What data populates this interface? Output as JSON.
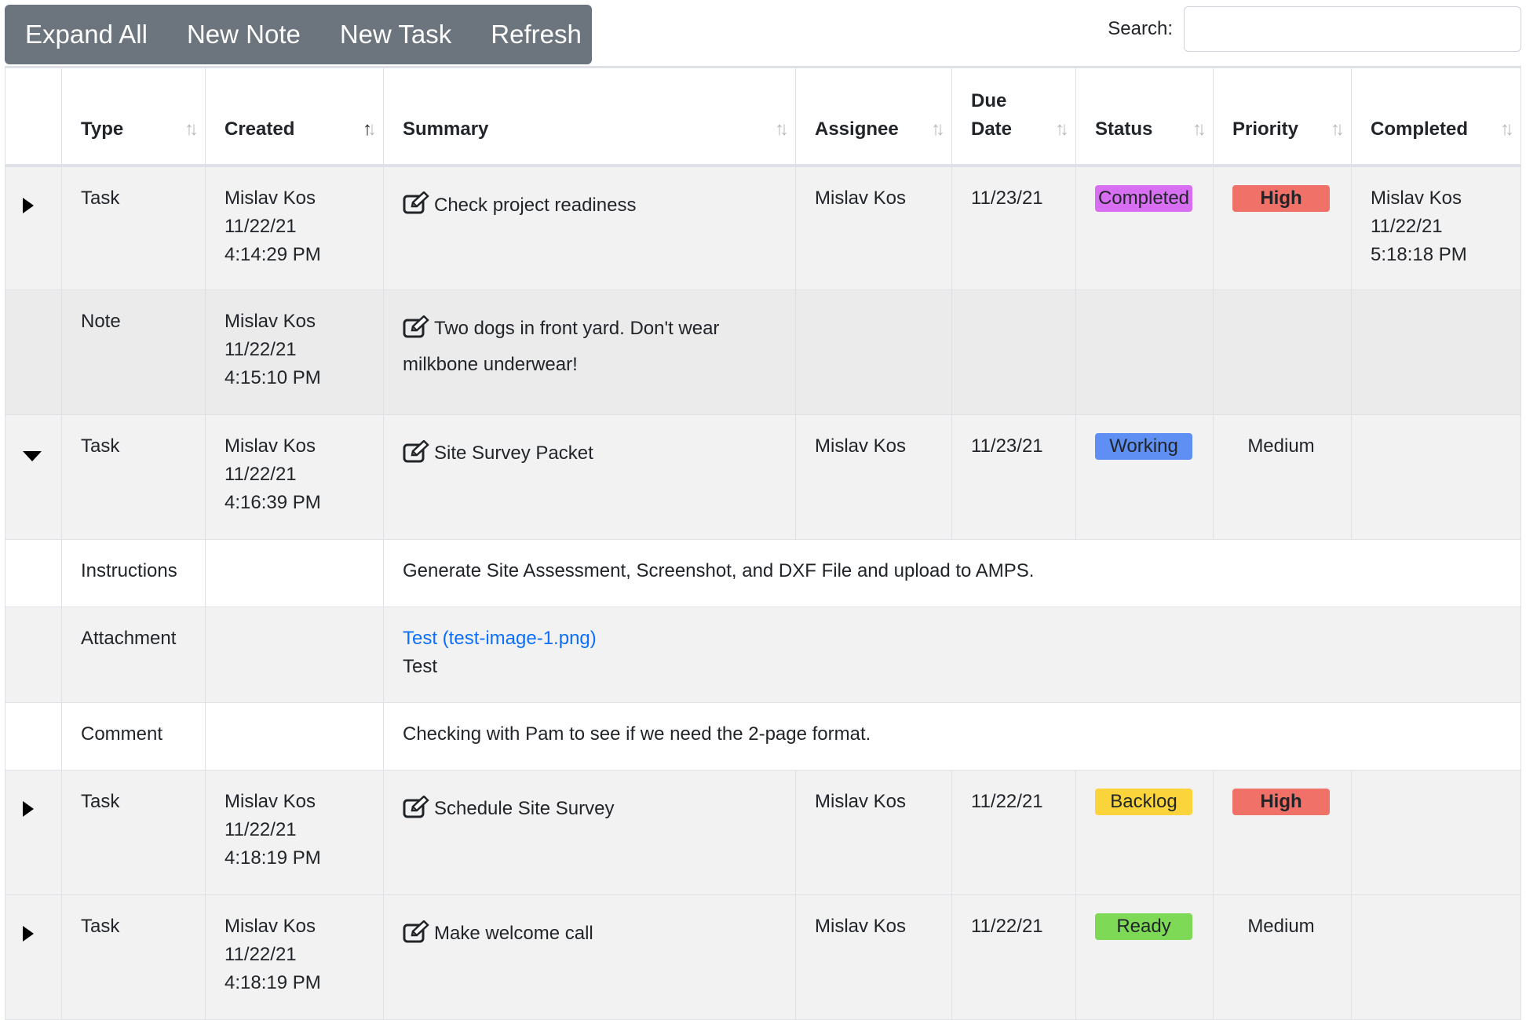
{
  "toolbar": {
    "expand_all": "Expand All",
    "new_note": "New Note",
    "new_task": "New Task",
    "refresh": "Refresh"
  },
  "search": {
    "label": "Search:",
    "value": ""
  },
  "columns": {
    "type": "Type",
    "created": "Created",
    "summary": "Summary",
    "assignee": "Assignee",
    "due_date_1": "Due",
    "due_date_2": "Date",
    "status": "Status",
    "priority": "Priority",
    "completed": "Completed"
  },
  "rows": [
    {
      "type": "Task",
      "created_by": "Mislav Kos",
      "created_date": "11/22/21",
      "created_time": "4:14:29 PM",
      "summary": "Check project readiness",
      "assignee": "Mislav Kos",
      "due": "11/23/21",
      "status": "Completed",
      "priority": "High",
      "completed_by": "Mislav Kos",
      "completed_date": "11/22/21",
      "completed_time": "5:18:18 PM"
    },
    {
      "type": "Note",
      "created_by": "Mislav Kos",
      "created_date": "11/22/21",
      "created_time": "4:15:10 PM",
      "summary_line1": "Two dogs in front yard. Don't wear",
      "summary_line2": "milkbone underwear!"
    },
    {
      "type": "Task",
      "created_by": "Mislav Kos",
      "created_date": "11/22/21",
      "created_time": "4:16:39 PM",
      "summary": "Site Survey Packet",
      "assignee": "Mislav Kos",
      "due": "11/23/21",
      "status": "Working",
      "priority": "Medium"
    },
    {
      "type": "Task",
      "created_by": "Mislav Kos",
      "created_date": "11/22/21",
      "created_time": "4:18:19 PM",
      "summary": "Schedule Site Survey",
      "assignee": "Mislav Kos",
      "due": "11/22/21",
      "status": "Backlog",
      "priority": "High"
    },
    {
      "type": "Task",
      "created_by": "Mislav Kos",
      "created_date": "11/22/21",
      "created_time": "4:18:19 PM",
      "summary": "Make welcome call",
      "assignee": "Mislav Kos",
      "due": "11/22/21",
      "status": "Ready",
      "priority": "Medium"
    }
  ],
  "details": {
    "instructions_label": "Instructions",
    "instructions_text": "Generate Site Assessment, Screenshot, and DXF File and upload to AMPS.",
    "attachment_label": "Attachment",
    "attachment_link": "Test (test-image-1.png)",
    "attachment_caption": "Test",
    "comment_label": "Comment",
    "comment_text": "Checking with Pam to see if we need the 2-page format."
  },
  "colors": {
    "completed": "#d86ff2",
    "working": "#5f8ff2",
    "backlog": "#fad43a",
    "ready": "#7ed957",
    "high": "#f07167",
    "toolbar": "#6c757d",
    "link": "#0d6efd"
  },
  "icons": {
    "expand": "triangle-right",
    "collapse": "triangle-down",
    "edit": "pencil-square",
    "sort": "up-down-arrows"
  }
}
